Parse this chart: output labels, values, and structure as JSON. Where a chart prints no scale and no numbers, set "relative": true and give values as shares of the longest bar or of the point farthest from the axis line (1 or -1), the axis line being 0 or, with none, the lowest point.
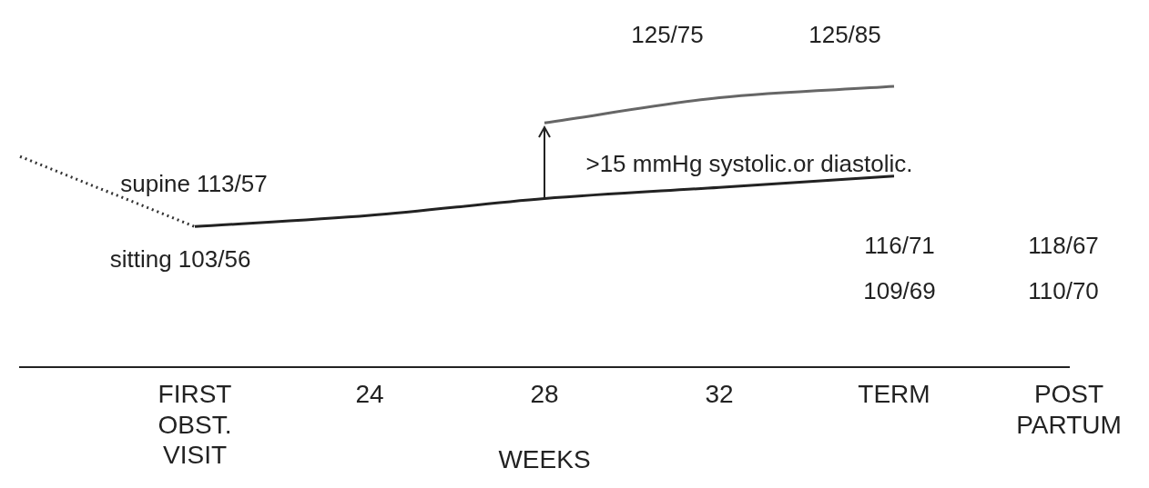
{
  "chart_data": {
    "type": "line",
    "relative": true,
    "xlabel": "WEEKS",
    "categories": [
      null,
      "FIRST OBST. VISIT",
      "24",
      "28",
      "32",
      "TERM",
      "POST PARTUM"
    ],
    "series": [
      {
        "color": "#333333",
        "line_style": "dotted",
        "values": [
          0.75,
          0.5,
          null,
          null,
          null,
          null,
          null
        ]
      },
      {
        "color": "#222222",
        "line_style": "solid",
        "values": [
          null,
          0.5,
          0.54,
          0.6,
          0.64,
          0.68,
          null
        ]
      },
      {
        "color": "#666666",
        "line_style": "solid",
        "values": [
          null,
          null,
          null,
          0.87,
          0.96,
          1,
          null
        ]
      }
    ],
    "annotations": [
      "supine 113/57",
      "sitting 103/56",
      ">15 mmHg systolic.or diastolic.",
      "125/75",
      "125/85",
      "116/71",
      "109/69",
      "118/67",
      "110/70"
    ],
    "legend": false,
    "grid": false,
    "marker": "none"
  }
}
